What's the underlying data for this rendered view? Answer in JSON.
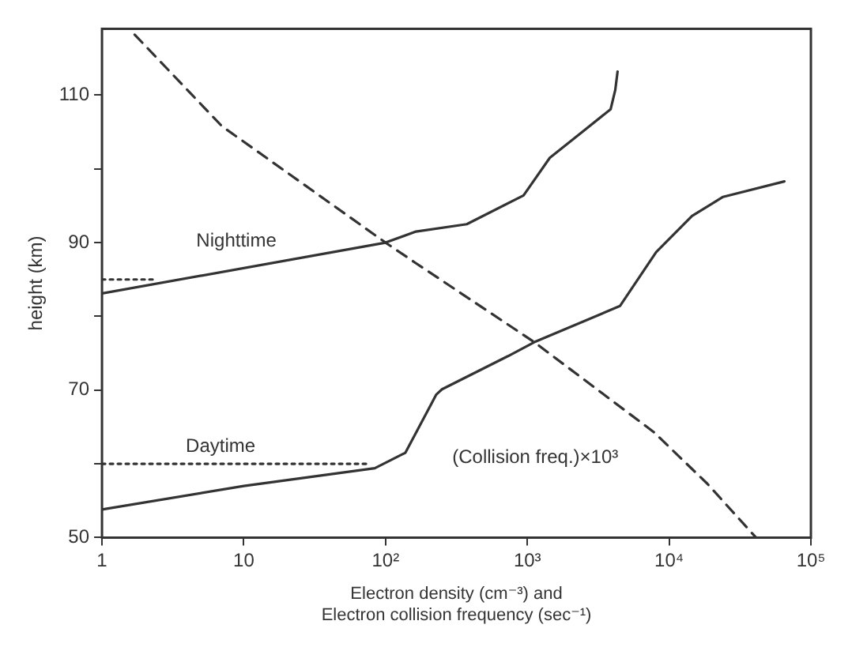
{
  "chart_data": {
    "type": "line",
    "xlabel": "Electron density (cm⁻³) and\nElectron collision frequency (sec⁻¹)",
    "ylabel": "height (km)",
    "log": "x",
    "xlim": [
      1,
      100000
    ],
    "xticks": [
      1,
      10,
      {
        "value": 100,
        "label": "10²"
      },
      {
        "value": 1000,
        "label": "10³"
      },
      {
        "value": 10000,
        "label": "10⁴"
      },
      {
        "value": 100000,
        "label": "10⁵"
      }
    ],
    "ylim": [
      50,
      119
    ],
    "yticks": [
      50,
      {
        "value": 60,
        "label": null
      },
      70,
      {
        "value": 80,
        "label": null
      },
      90,
      {
        "value": 100,
        "label": null
      },
      110
    ],
    "series": [
      {
        "name": "Nighttime",
        "color": "#333333",
        "line_style": "solid",
        "x": [
          1,
          100,
          164,
          374,
          940,
          1440,
          2550,
          3870,
          4170,
          4330
        ],
        "values": [
          83.1,
          90,
          91.5,
          92.5,
          96.4,
          101.5,
          105.3,
          108.1,
          110.7,
          113.2
        ]
      },
      {
        "color": "#333333",
        "line_style": "dotted",
        "x": [
          1,
          2.4
        ],
        "values": [
          85,
          85
        ]
      },
      {
        "name": "Daytime",
        "color": "#333333",
        "line_style": "solid",
        "x": [
          1,
          10,
          84,
          138,
          228,
          250,
          730,
          1120,
          4500,
          8100,
          14500,
          24000,
          65000
        ],
        "values": [
          53.8,
          57,
          59.4,
          61.5,
          69.4,
          70.1,
          74.6,
          76.5,
          81.4,
          88.7,
          93.6,
          96.2,
          98.3
        ]
      },
      {
        "color": "#333333",
        "line_style": "dotted",
        "x": [
          1,
          78
        ],
        "values": [
          60,
          60
        ]
      },
      {
        "name": "(Collision freq.)×10³",
        "color": "#333333",
        "line_style": "dashed",
        "x": [
          1.7,
          7,
          100,
          164,
          1120,
          7800,
          18600,
          41000
        ],
        "values": [
          118.2,
          105.8,
          90,
          87.2,
          76.5,
          64.3,
          57.3,
          50
        ]
      }
    ]
  }
}
